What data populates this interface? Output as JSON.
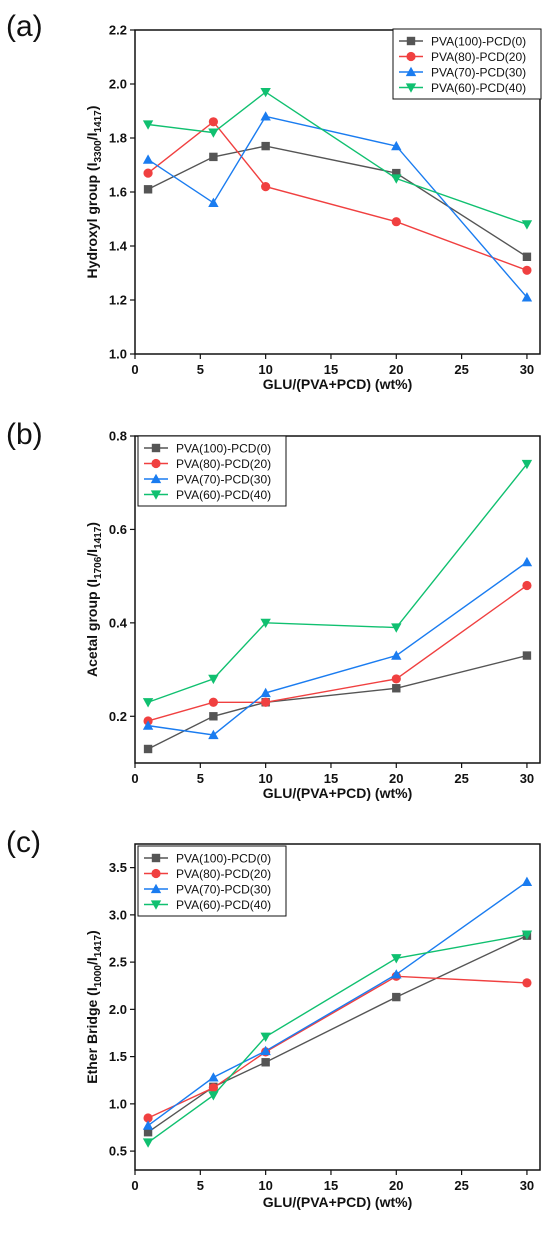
{
  "chart_data": [
    {
      "type": "line",
      "panel_label": "(a)",
      "xlabel": "GLU/(PVA+PCD) (wt%)",
      "ylabel_main": "Hydroxyl group (I",
      "ylabel_sub1": "3300",
      "ylabel_mid": "/I",
      "ylabel_sub2": "1417",
      "ylabel_end": ")",
      "xlim": [
        0,
        31
      ],
      "ylim": [
        1.0,
        2.2
      ],
      "xticks": [
        0,
        5,
        10,
        15,
        20,
        25,
        30
      ],
      "xtick_labels": [
        "0",
        "5",
        "10",
        "15",
        "20",
        "25",
        "30"
      ],
      "yticks": [
        1.0,
        1.2,
        1.4,
        1.6,
        1.8,
        2.0,
        2.2
      ],
      "ytick_labels": [
        "1.0",
        "1.2",
        "1.4",
        "1.6",
        "1.8",
        "2.0",
        "2.2"
      ],
      "legend_position": "top-right",
      "x": [
        1,
        6,
        10,
        20,
        30
      ],
      "series": [
        {
          "name": "PVA(100)-PCD(0)",
          "color": "#555555",
          "marker": "square",
          "values": [
            1.61,
            1.73,
            1.77,
            1.67,
            1.36
          ]
        },
        {
          "name": "PVA(80)-PCD(20)",
          "color": "#f04040",
          "marker": "circle",
          "values": [
            1.67,
            1.86,
            1.62,
            1.49,
            1.31
          ]
        },
        {
          "name": "PVA(70)-PCD(30)",
          "color": "#1a7cf0",
          "marker": "triangle-up",
          "values": [
            1.72,
            1.56,
            1.88,
            1.77,
            1.21
          ]
        },
        {
          "name": "PVA(60)-PCD(40)",
          "color": "#10c070",
          "marker": "triangle-down",
          "values": [
            1.85,
            1.82,
            1.97,
            1.65,
            1.48
          ]
        }
      ]
    },
    {
      "type": "line",
      "panel_label": "(b)",
      "xlabel": "GLU/(PVA+PCD) (wt%)",
      "ylabel_main": "Acetal group (I",
      "ylabel_sub1": "1706",
      "ylabel_mid": "/I",
      "ylabel_sub2": "1417",
      "ylabel_end": ")",
      "xlim": [
        0,
        31
      ],
      "ylim": [
        0.1,
        0.8
      ],
      "xticks": [
        0,
        5,
        10,
        15,
        20,
        25,
        30
      ],
      "xtick_labels": [
        "0",
        "5",
        "10",
        "15",
        "20",
        "25",
        "30"
      ],
      "yticks": [
        0.2,
        0.4,
        0.6,
        0.8
      ],
      "ytick_labels": [
        "0.2",
        "0.4",
        "0.6",
        "0.8"
      ],
      "legend_position": "top-left",
      "x": [
        1,
        6,
        10,
        20,
        30
      ],
      "series": [
        {
          "name": "PVA(100)-PCD(0)",
          "color": "#555555",
          "marker": "square",
          "values": [
            0.13,
            0.2,
            0.23,
            0.26,
            0.33
          ]
        },
        {
          "name": "PVA(80)-PCD(20)",
          "color": "#f04040",
          "marker": "circle",
          "values": [
            0.19,
            0.23,
            0.23,
            0.28,
            0.48
          ]
        },
        {
          "name": "PVA(70)-PCD(30)",
          "color": "#1a7cf0",
          "marker": "triangle-up",
          "values": [
            0.18,
            0.16,
            0.25,
            0.33,
            0.53
          ]
        },
        {
          "name": "PVA(60)-PCD(40)",
          "color": "#10c070",
          "marker": "triangle-down",
          "values": [
            0.23,
            0.28,
            0.4,
            0.39,
            0.74
          ]
        }
      ]
    },
    {
      "type": "line",
      "panel_label": "(c)",
      "xlabel": "GLU/(PVA+PCD) (wt%)",
      "ylabel_main": "Ether Bridge (I",
      "ylabel_sub1": "1000",
      "ylabel_mid": "/I",
      "ylabel_sub2": "1417",
      "ylabel_end": ")",
      "xlim": [
        0,
        31
      ],
      "ylim": [
        0.3,
        3.75
      ],
      "xticks": [
        0,
        5,
        10,
        15,
        20,
        25,
        30
      ],
      "xtick_labels": [
        "0",
        "5",
        "10",
        "15",
        "20",
        "25",
        "30"
      ],
      "yticks": [
        0.5,
        1.0,
        1.5,
        2.0,
        2.5,
        3.0,
        3.5
      ],
      "ytick_labels": [
        "0.5",
        "1.0",
        "1.5",
        "2.0",
        "2.5",
        "3.0",
        "3.5"
      ],
      "legend_position": "top-left",
      "x": [
        1,
        6,
        10,
        20,
        30
      ],
      "series": [
        {
          "name": "PVA(100)-PCD(0)",
          "color": "#555555",
          "marker": "square",
          "values": [
            0.7,
            1.18,
            1.44,
            2.13,
            2.78
          ]
        },
        {
          "name": "PVA(80)-PCD(20)",
          "color": "#f04040",
          "marker": "circle",
          "values": [
            0.85,
            1.17,
            1.55,
            2.35,
            2.28
          ]
        },
        {
          "name": "PVA(70)-PCD(30)",
          "color": "#1a7cf0",
          "marker": "triangle-up",
          "values": [
            0.77,
            1.28,
            1.56,
            2.37,
            3.35
          ]
        },
        {
          "name": "PVA(60)-PCD(40)",
          "color": "#10c070",
          "marker": "triangle-down",
          "values": [
            0.59,
            1.09,
            1.71,
            2.54,
            2.79
          ]
        }
      ]
    }
  ]
}
